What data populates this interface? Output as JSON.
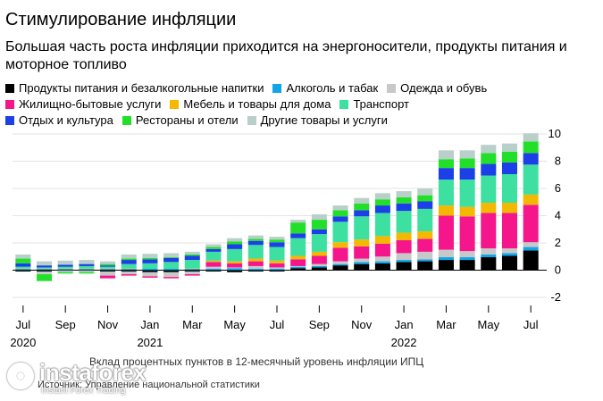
{
  "title": "Стимулирование инфляции",
  "subtitle": "Большая часть роста инфляции приходится на энергоносители, продукты питания и моторное топливо",
  "footnote": "Вклад процентных пунктов в 12-месячный уровень инфляции ИПЦ",
  "source": "Источник: Управление национальной статистики",
  "watermark": {
    "name": "instaforex",
    "tagline": "Instant Forex Trading"
  },
  "chart_data": {
    "type": "bar",
    "stacked": true,
    "title": "Стимулирование инфляции",
    "ylabel": "",
    "xlabel": "",
    "ylim": [
      -2,
      10
    ],
    "yticks": [
      -2,
      0,
      2,
      4,
      6,
      8,
      10
    ],
    "ytick_labels": [
      "-2",
      "0",
      "2",
      "4",
      "6",
      "8",
      "10"
    ],
    "categories": [
      "2020-07",
      "2020-08",
      "2020-09",
      "2020-10",
      "2020-11",
      "2020-12",
      "2021-01",
      "2021-02",
      "2021-03",
      "2021-04",
      "2021-05",
      "2021-06",
      "2021-07",
      "2021-08",
      "2021-09",
      "2021-10",
      "2021-11",
      "2021-12",
      "2022-01",
      "2022-02",
      "2022-03",
      "2022-04",
      "2022-05",
      "2022-06",
      "2022-07"
    ],
    "x_tick_labels": [
      {
        "index": 0,
        "month": "Jul",
        "year": "2020"
      },
      {
        "index": 2,
        "month": "Sep",
        "year": ""
      },
      {
        "index": 4,
        "month": "Nov",
        "year": ""
      },
      {
        "index": 6,
        "month": "Jan",
        "year": "2021"
      },
      {
        "index": 8,
        "month": "Mar",
        "year": ""
      },
      {
        "index": 10,
        "month": "May",
        "year": ""
      },
      {
        "index": 12,
        "month": "Jul",
        "year": ""
      },
      {
        "index": 14,
        "month": "Sep",
        "year": ""
      },
      {
        "index": 16,
        "month": "Nov",
        "year": ""
      },
      {
        "index": 18,
        "month": "Jan",
        "year": "2022"
      },
      {
        "index": 20,
        "month": "Mar",
        "year": ""
      },
      {
        "index": 22,
        "month": "May",
        "year": ""
      },
      {
        "index": 24,
        "month": "Jul",
        "year": ""
      }
    ],
    "series": [
      {
        "name": "Продукты питания и безалкогольные напитки",
        "color": "#000000",
        "values": [
          -0.1,
          -0.1,
          -0.05,
          -0.05,
          -0.1,
          -0.1,
          -0.15,
          -0.15,
          -0.1,
          -0.1,
          -0.15,
          -0.1,
          -0.1,
          0.15,
          0.2,
          0.35,
          0.45,
          0.5,
          0.6,
          0.65,
          0.75,
          0.75,
          0.95,
          1.05,
          1.45
        ]
      },
      {
        "name": "Алкоголь и табак",
        "color": "#0ea5e9",
        "values": [
          0.1,
          0.1,
          0.1,
          0.1,
          0.1,
          0.1,
          0.1,
          0.1,
          0.1,
          0.1,
          0.15,
          0.1,
          0.1,
          0.1,
          0.1,
          0.1,
          0.15,
          0.15,
          0.15,
          0.15,
          0.2,
          0.2,
          0.2,
          0.2,
          0.25
        ]
      },
      {
        "name": "Одежда и обувь",
        "color": "#c8c8c8",
        "values": [
          0.0,
          -0.2,
          -0.1,
          -0.1,
          -0.3,
          -0.2,
          -0.3,
          -0.35,
          -0.2,
          0.15,
          0.05,
          0.2,
          0.1,
          0.05,
          0.15,
          0.2,
          0.25,
          0.35,
          0.5,
          0.55,
          0.55,
          0.45,
          0.45,
          0.35,
          0.35
        ]
      },
      {
        "name": "Жилищно-бытовые услуги",
        "color": "#f5168c",
        "values": [
          0.0,
          0.0,
          0.0,
          0.0,
          -0.2,
          -0.1,
          -0.1,
          -0.1,
          -0.1,
          0.35,
          0.3,
          0.35,
          0.3,
          0.5,
          0.6,
          1.0,
          0.9,
          0.95,
          0.95,
          0.95,
          2.5,
          2.55,
          2.6,
          2.6,
          2.75
        ]
      },
      {
        "name": "Мебель и товары для дома",
        "color": "#f5b800",
        "values": [
          0.05,
          0.05,
          0.05,
          0.05,
          0.05,
          0.05,
          0.0,
          0.0,
          0.05,
          0.1,
          0.15,
          0.2,
          0.2,
          0.25,
          0.3,
          0.4,
          0.5,
          0.55,
          0.55,
          0.55,
          0.75,
          0.7,
          0.75,
          0.75,
          0.75
        ]
      },
      {
        "name": "Транспорт",
        "color": "#3de0a0",
        "values": [
          0.1,
          0.05,
          0.1,
          0.15,
          0.1,
          0.3,
          0.4,
          0.5,
          0.6,
          0.65,
          0.9,
          1.0,
          1.0,
          1.3,
          1.3,
          1.5,
          1.7,
          1.7,
          1.6,
          1.65,
          1.9,
          2.0,
          2.0,
          2.1,
          2.2
        ]
      },
      {
        "name": "Отдых и культура",
        "color": "#1c3fe8",
        "values": [
          0.25,
          0.15,
          0.15,
          0.15,
          0.1,
          0.3,
          0.3,
          0.3,
          0.3,
          0.2,
          0.35,
          0.3,
          0.35,
          0.35,
          0.35,
          0.4,
          0.45,
          0.55,
          0.55,
          0.55,
          0.85,
          0.85,
          0.85,
          0.85,
          0.85
        ]
      },
      {
        "name": "Рестораны и отели",
        "color": "#22e02a",
        "values": [
          0.35,
          -0.5,
          -0.1,
          -0.1,
          0.1,
          0.1,
          0.1,
          0.05,
          0.1,
          0.15,
          0.2,
          0.15,
          0.2,
          0.8,
          0.7,
          0.45,
          0.5,
          0.45,
          0.45,
          0.45,
          0.65,
          0.7,
          0.8,
          0.8,
          0.85
        ]
      },
      {
        "name": "Другие товары и услуги",
        "color": "#b9cfc9",
        "values": [
          0.3,
          0.3,
          0.3,
          0.3,
          0.2,
          0.3,
          0.3,
          0.3,
          0.2,
          0.2,
          0.25,
          0.25,
          0.2,
          0.2,
          0.4,
          0.35,
          0.4,
          0.45,
          0.45,
          0.5,
          0.65,
          0.6,
          0.6,
          0.6,
          0.6
        ]
      }
    ]
  }
}
